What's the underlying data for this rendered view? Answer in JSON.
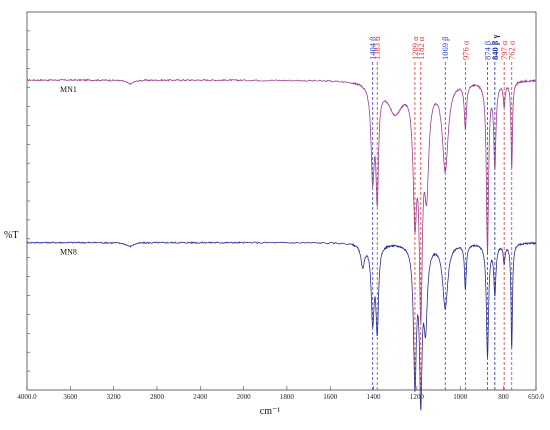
{
  "chart_data": {
    "type": "line",
    "ylabel": "%T",
    "xlabel": "cm⁻¹",
    "xlim": [
      4000,
      650
    ],
    "x_ticks": [
      "4000.0",
      "3600",
      "3200",
      "2800",
      "2400",
      "2000",
      "1800",
      "1600",
      "1400",
      "1200",
      "1000",
      "800",
      "650.0"
    ],
    "series": [
      {
        "name": "MN1",
        "color": "#9b3f8f",
        "baseline": 0.82,
        "peaks": [
          {
            "x": 3050,
            "depth": 0.01,
            "w": 40
          },
          {
            "x": 1404,
            "depth": 0.24,
            "w": 9
          },
          {
            "x": 1383,
            "depth": 0.28,
            "w": 7
          },
          {
            "x": 1300,
            "depth": 0.08,
            "w": 40
          },
          {
            "x": 1209,
            "depth": 0.32,
            "w": 10
          },
          {
            "x": 1182,
            "depth": 0.55,
            "w": 9
          },
          {
            "x": 1155,
            "depth": 0.25,
            "w": 12
          },
          {
            "x": 1069,
            "depth": 0.23,
            "w": 16
          },
          {
            "x": 976,
            "depth": 0.12,
            "w": 6
          },
          {
            "x": 874,
            "depth": 0.45,
            "w": 6
          },
          {
            "x": 840,
            "depth": 0.22,
            "w": 6
          },
          {
            "x": 797,
            "depth": 0.06,
            "w": 5
          },
          {
            "x": 762,
            "depth": 0.23,
            "w": 4
          }
        ]
      },
      {
        "name": "MN8",
        "color": "#2a2f8f",
        "baseline": 0.39,
        "peaks": [
          {
            "x": 3050,
            "depth": 0.01,
            "w": 40
          },
          {
            "x": 1450,
            "depth": 0.06,
            "w": 10
          },
          {
            "x": 1404,
            "depth": 0.2,
            "w": 8
          },
          {
            "x": 1383,
            "depth": 0.22,
            "w": 7
          },
          {
            "x": 1209,
            "depth": 0.36,
            "w": 8
          },
          {
            "x": 1182,
            "depth": 0.38,
            "w": 7
          },
          {
            "x": 1160,
            "depth": 0.2,
            "w": 10
          },
          {
            "x": 1069,
            "depth": 0.17,
            "w": 14
          },
          {
            "x": 976,
            "depth": 0.12,
            "w": 5
          },
          {
            "x": 874,
            "depth": 0.3,
            "w": 6
          },
          {
            "x": 840,
            "depth": 0.13,
            "w": 6
          },
          {
            "x": 797,
            "depth": 0.05,
            "w": 5
          },
          {
            "x": 762,
            "depth": 0.28,
            "w": 4
          }
        ]
      }
    ],
    "annotations": [
      {
        "x": 1404,
        "label": "1404 β",
        "color": "#3344cc"
      },
      {
        "x": 1383,
        "label": "1383 α",
        "color": "#dd3333"
      },
      {
        "x": 1209,
        "label": "1209 α",
        "color": "#dd3333"
      },
      {
        "x": 1182,
        "label": "1182 α",
        "color": "#dd3333"
      },
      {
        "x": 1069,
        "label": "1069 β",
        "color": "#3344cc"
      },
      {
        "x": 976,
        "label": "976 α",
        "color": "#dd3333"
      },
      {
        "x": 874,
        "label": "874 β",
        "color": "#3344cc"
      },
      {
        "x": 840,
        "label": "840 β γ",
        "color": "#1a2a99"
      },
      {
        "x": 797,
        "label": "797 α",
        "color": "#dd3333"
      },
      {
        "x": 762,
        "label": "762 α",
        "color": "#dd3333"
      }
    ],
    "grid": false
  }
}
